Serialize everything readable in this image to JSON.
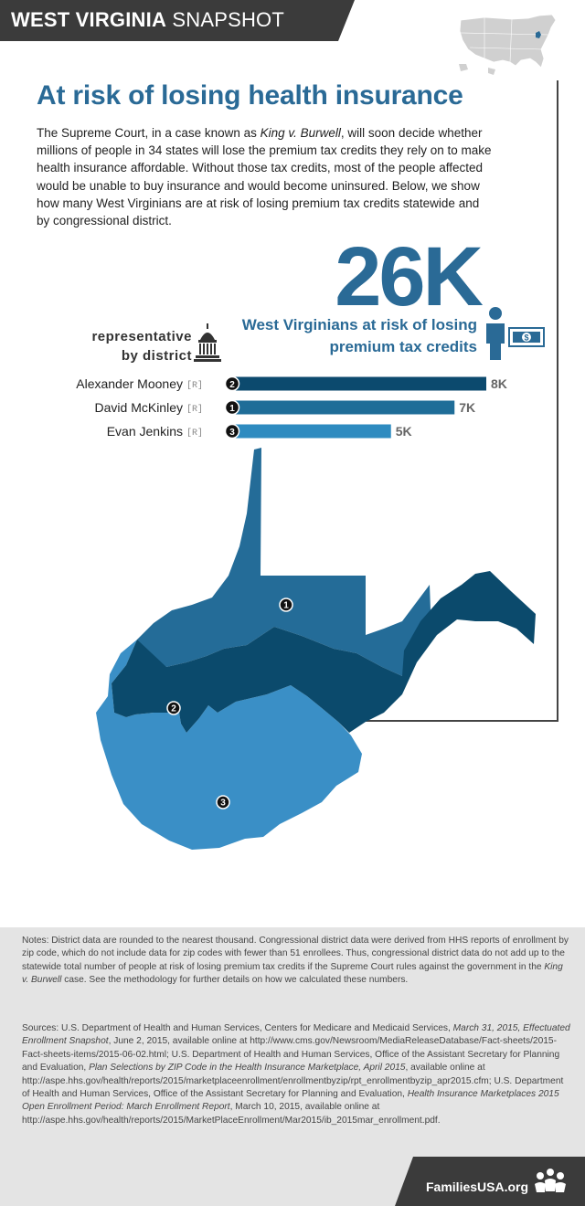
{
  "header": {
    "title_bold": "WEST VIRGINIA",
    "title_light": "SNAPSHOT"
  },
  "title": "At risk of losing health insurance",
  "intro": {
    "p1": "The Supreme Court, in a case known as ",
    "case_name": "King v. Burwell",
    "p2": ", will soon decide whether millions of people in 34 states will lose the premium tax credits they rely on to make health insurance affordable. Without those tax credits, most of the people affected would be unable to buy insurance and would become uninsured. Below, we show how many West Virginians are at risk of losing premium tax credits statewide and by congressional district."
  },
  "statewide": {
    "value_label": "26K",
    "caption_line1": "West Virginians at risk of losing",
    "caption_line2": "premium tax credits"
  },
  "representative_label": {
    "line1": "representative",
    "line2": "by district"
  },
  "colors": {
    "dark": "#0c4a6e",
    "mid": "#1f6d98",
    "light": "#2e8bc0",
    "map1": "#246c98",
    "map2": "#0b4a6c",
    "map3": "#3a8fc6",
    "title": "#2a6a96",
    "header": "#3b3b3b"
  },
  "chart_data": {
    "type": "bar",
    "orientation": "horizontal",
    "title": "",
    "categories": [
      "Alexander Mooney",
      "David McKinley",
      "Evan Jenkins"
    ],
    "party": [
      "[R]",
      "[R]",
      "[R]"
    ],
    "districts": [
      "2",
      "1",
      "3"
    ],
    "values": [
      8000,
      7000,
      5000
    ],
    "value_labels": [
      "8K",
      "7K",
      "5K"
    ],
    "bar_colors": [
      "#0c4a6e",
      "#1f6d98",
      "#2e8bc0"
    ],
    "xlim": [
      0,
      8000
    ],
    "grid": false,
    "legend": "none"
  },
  "map": {
    "district_labels": [
      "1",
      "2",
      "3"
    ]
  },
  "notes": {
    "p1": "Notes: District data are rounded to the nearest thousand. Congressional district data were derived from HHS reports of enrollment by zip code, which do not include data for zip codes with fewer than 51 enrollees. Thus, congressional district data do not add up to the statewide total number of people at risk of losing premium tax credits if the Supreme Court rules against the government in the ",
    "case_name": "King v. Burwell",
    "p2": " case. See the methodology for further details on how we calculated these numbers."
  },
  "sources": {
    "s1": "Sources: U.S. Department of Health and Human Services, Centers for Medicare and Medicaid Services, ",
    "s1i": "March 31, 2015, Effectuated Enrollment Snapshot",
    "s2": ", June 2, 2015, available online at http://www.cms.gov/Newsroom/MediaReleaseDatabase/Fact-sheets/2015-Fact-sheets-items/2015-06-02.html; U.S. Department of Health and Human Services, Office of the Assistant Secretary for Planning and Evaluation, ",
    "s2i": "Plan Selections by ZIP Code in the Health Insurance Marketplace, April 2015",
    "s3": ", available online at http://aspe.hhs.gov/health/reports/2015/marketplaceenrollment/enrollmentbyzip/rpt_enrollmentbyzip_apr2015.cfm; U.S. Department of Health and Human Services, Office of the Assistant Secretary for Planning and Evaluation, ",
    "s3i": "Health Insurance Marketplaces 2015 Open Enrollment Period: March Enrollment Report",
    "s4": ", March 10, 2015, available online at http://aspe.hhs.gov/health/reports/2015/MarketPlaceEnrollment/Mar2015/ib_2015mar_enrollment.pdf."
  },
  "footer": {
    "site": "FamiliesUSA.org"
  }
}
